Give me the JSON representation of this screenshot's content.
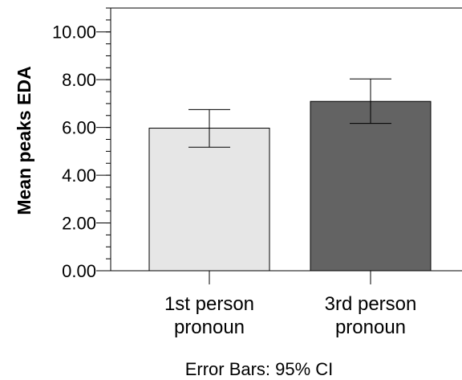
{
  "chart_data": {
    "type": "bar",
    "categories": [
      [
        "1st person",
        "pronoun"
      ],
      [
        "3rd person",
        "pronoun"
      ]
    ],
    "values": [
      5.97,
      7.09
    ],
    "error_bars": {
      "lower": [
        5.17,
        6.17
      ],
      "upper": [
        6.75,
        8.03
      ]
    },
    "bar_colors": [
      "#e6e6e6",
      "#636363"
    ],
    "title": "",
    "xlabel": "",
    "ylabel": "Mean peaks EDA",
    "ylim": [
      0,
      11
    ],
    "yticks": [
      "0.00",
      "2.00",
      "4.00",
      "6.00",
      "8.00",
      "10.00"
    ],
    "grid": false,
    "footnote": "Error Bars: 95% CI"
  }
}
